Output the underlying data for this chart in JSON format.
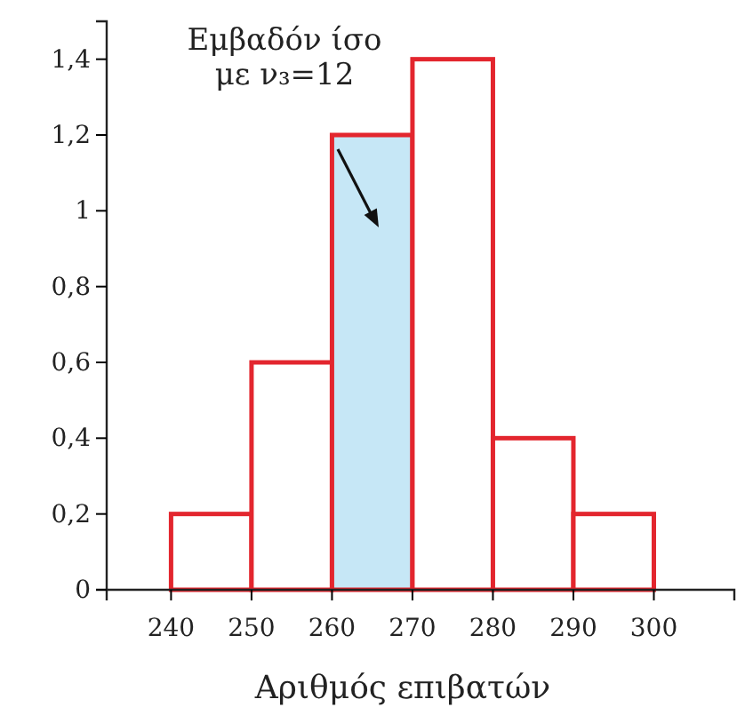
{
  "chart_data": {
    "type": "histogram",
    "xlabel": "Αριθμός επιβατών",
    "bins": [
      240,
      250,
      260,
      270,
      280,
      290,
      300
    ],
    "values": [
      0.2,
      0.6,
      1.2,
      1.4,
      0.4,
      0.2
    ],
    "color": "#e3262e",
    "colors": [
      "#ffffff",
      "#ffffff",
      "#c6e7f6",
      "#ffffff",
      "#ffffff",
      "#ffffff"
    ],
    "xlim": [
      232,
      310
    ],
    "xticks": [
      240,
      250,
      260,
      270,
      280,
      290,
      300
    ],
    "ylim": [
      0,
      1.5
    ],
    "yticks": [
      0,
      {
        "value": 0.2,
        "label": "0,2"
      },
      {
        "value": 0.4,
        "label": "0,4"
      },
      {
        "value": 0.6,
        "label": "0,6"
      },
      {
        "value": 0.8,
        "label": "0,8"
      },
      1,
      {
        "value": 1.2,
        "label": "1,2"
      },
      {
        "value": 1.4,
        "label": "1,4"
      }
    ],
    "annotations": [
      "Εμβαδόν ίσο\nμε ν₃=12"
    ],
    "grid": false
  }
}
